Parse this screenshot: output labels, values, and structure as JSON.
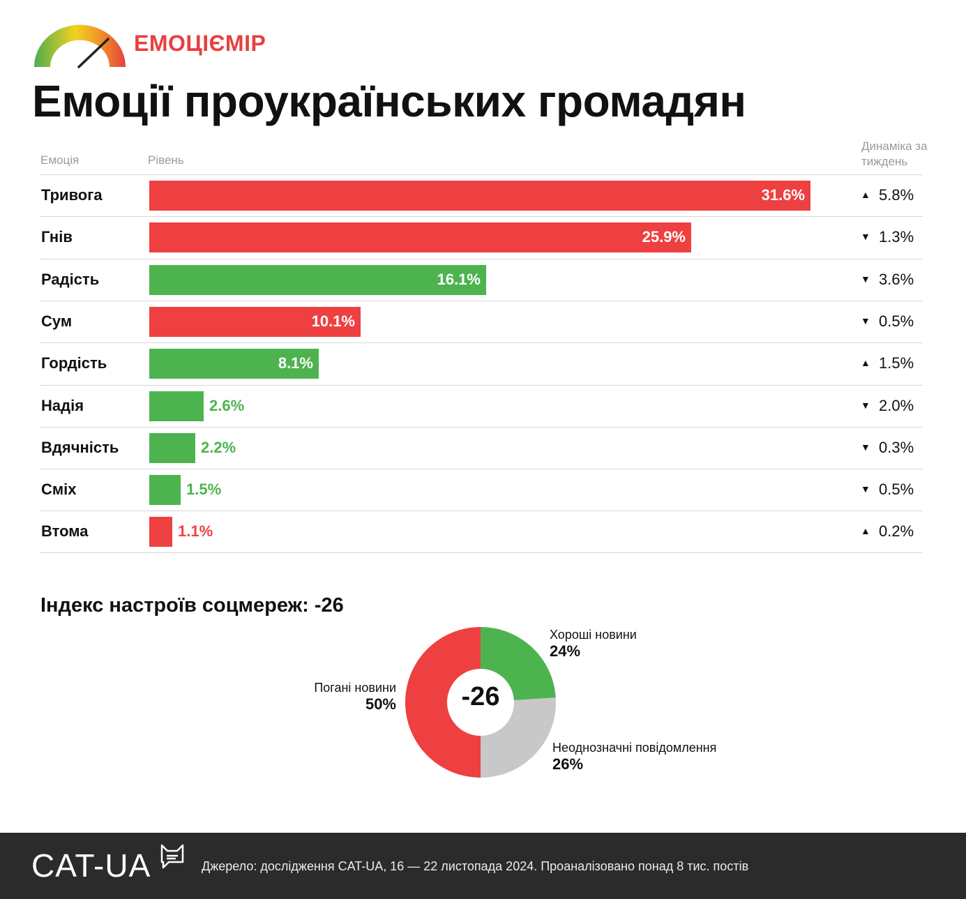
{
  "brand": {
    "name": "ЕМОЦІЄМІР",
    "icon": "gauge-icon"
  },
  "title": "Емоції проукраїнських громадян",
  "headers": {
    "emotion": "Емоція",
    "level": "Рівень",
    "dynamics": "Динаміка за тиждень"
  },
  "colors": {
    "negative": "#ee4040",
    "positive": "#4db34f",
    "neutral": "#c8c8c8",
    "footer": "#2b2b2b",
    "brand": "#e8403e"
  },
  "chart_data": [
    {
      "type": "bar",
      "orientation": "horizontal",
      "categories": [
        "Тривога",
        "Гнів",
        "Радість",
        "Сум",
        "Гордість",
        "Надія",
        "Вдячність",
        "Сміх",
        "Втома"
      ],
      "values": [
        31.6,
        25.9,
        16.1,
        10.1,
        8.1,
        2.6,
        2.2,
        1.5,
        1.1
      ],
      "value_labels": [
        "31.6%",
        "25.9%",
        "16.1%",
        "10.1%",
        "8.1%",
        "2.6%",
        "2.2%",
        "1.5%",
        "1.1%"
      ],
      "valence": [
        "negative",
        "negative",
        "positive",
        "negative",
        "positive",
        "positive",
        "positive",
        "positive",
        "negative"
      ],
      "dynamics": [
        {
          "direction": "up",
          "label": "5.8%"
        },
        {
          "direction": "down",
          "label": "1.3%"
        },
        {
          "direction": "down",
          "label": "3.6%"
        },
        {
          "direction": "down",
          "label": "0.5%"
        },
        {
          "direction": "up",
          "label": "1.5%"
        },
        {
          "direction": "down",
          "label": "2.0%"
        },
        {
          "direction": "down",
          "label": "0.3%"
        },
        {
          "direction": "down",
          "label": "0.5%"
        },
        {
          "direction": "up",
          "label": "0.2%"
        }
      ],
      "xlim": [
        0,
        31.6
      ],
      "grid": false
    },
    {
      "type": "pie",
      "title": "Індекс настроїв соцмереж: -26",
      "center_label": "-26",
      "slices": [
        {
          "name": "Хороші новини",
          "value": 24,
          "label": "24%",
          "color": "#4db34f"
        },
        {
          "name": "Неоднозначні повідомлення",
          "value": 26,
          "label": "26%",
          "color": "#c8c8c8"
        },
        {
          "name": "Погані новини",
          "value": 50,
          "label": "50%",
          "color": "#ee4040"
        }
      ]
    }
  ],
  "footer": {
    "logo": "CAT-UA",
    "source": "Джерело: дослідження CAT-UA, 16 — 22 листопада 2024. Проаналізовано понад 8 тис. постів"
  }
}
